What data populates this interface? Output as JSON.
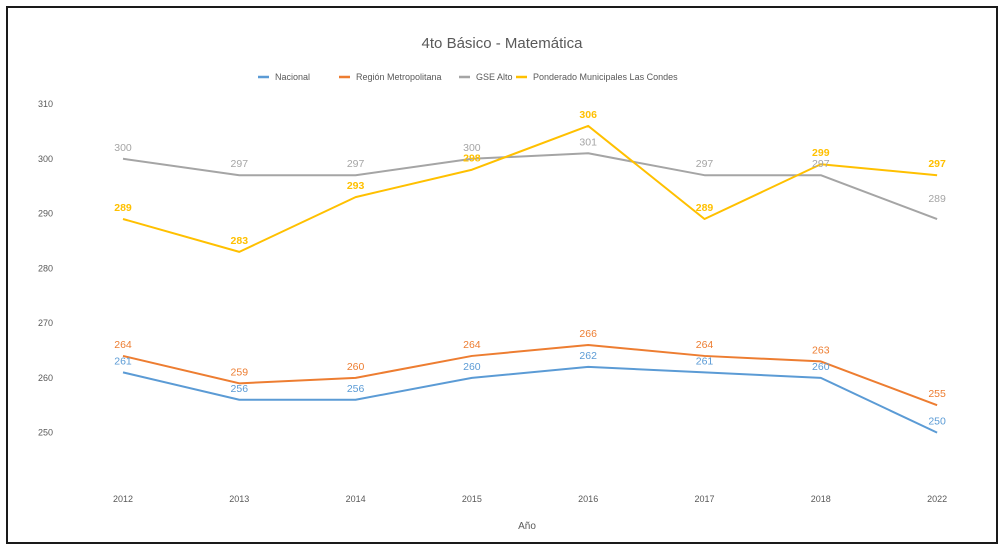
{
  "chart_data": {
    "type": "line",
    "title": "4to Básico -  Matemática",
    "xlabel": "Año",
    "ylabel": "",
    "categories": [
      "2012",
      "2013",
      "2014",
      "2015",
      "2016",
      "2017",
      "2018",
      "2022"
    ],
    "ylim": [
      245,
      310
    ],
    "yticks": [
      250,
      260,
      270,
      280,
      290,
      300,
      310
    ],
    "grid": false,
    "legend_position": "top",
    "series": [
      {
        "name": "Nacional",
        "color": "#5b9bd5",
        "values": [
          261,
          256,
          256,
          260,
          262,
          261,
          260,
          250
        ]
      },
      {
        "name": "Región Metropolitana",
        "color": "#ed7d31",
        "values": [
          264,
          259,
          260,
          264,
          266,
          264,
          263,
          255
        ]
      },
      {
        "name": "GSE Alto",
        "color": "#a5a5a5",
        "values": [
          300,
          297,
          297,
          300,
          301,
          297,
          297,
          289
        ]
      },
      {
        "name": "Ponderado Municipales Las Condes",
        "color": "#ffc000",
        "values": [
          289,
          283,
          293,
          298,
          306,
          289,
          299,
          297
        ]
      }
    ]
  }
}
